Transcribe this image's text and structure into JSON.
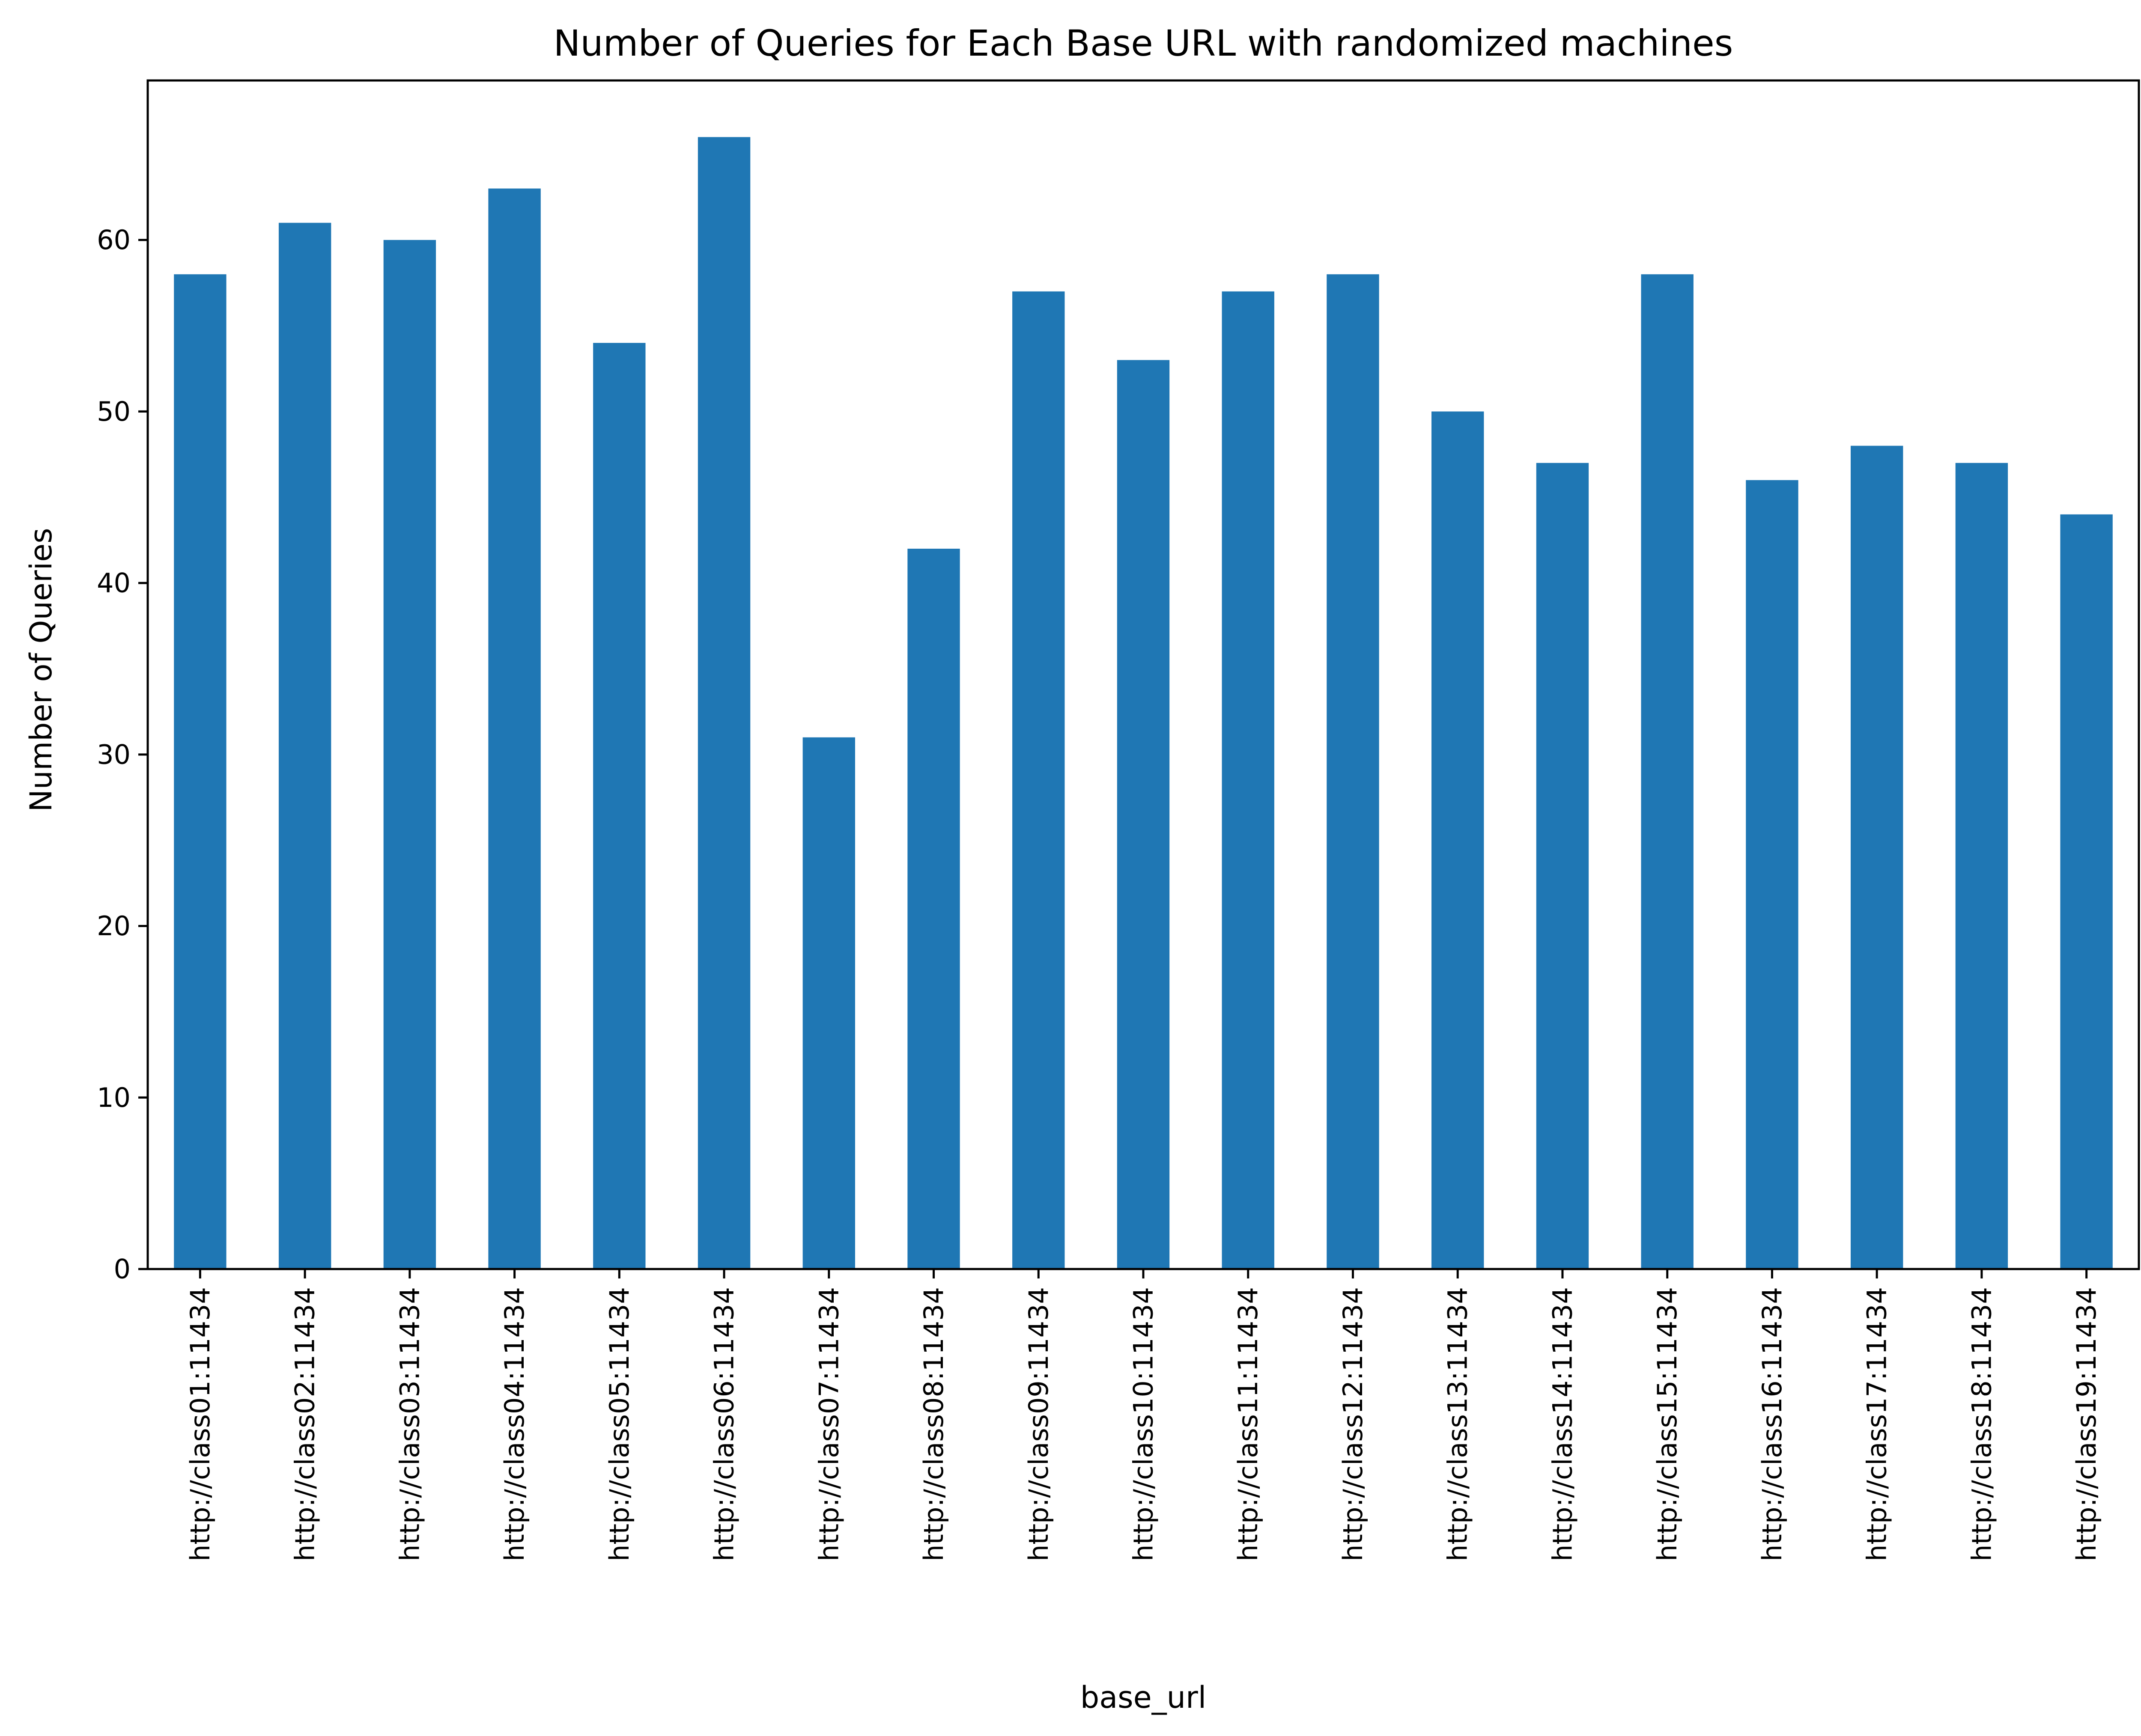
{
  "chart_data": {
    "type": "bar",
    "title": "Number of Queries for Each Base URL with randomized machines",
    "xlabel": "base_url",
    "ylabel": "Number of Queries",
    "ylim": [
      0,
      69.3
    ],
    "yticks": [
      0,
      10,
      20,
      30,
      40,
      50,
      60
    ],
    "grid": false,
    "legend": "none",
    "bar_color": "#1f77b4",
    "categories": [
      "http://class01:11434",
      "http://class02:11434",
      "http://class03:11434",
      "http://class04:11434",
      "http://class05:11434",
      "http://class06:11434",
      "http://class07:11434",
      "http://class08:11434",
      "http://class09:11434",
      "http://class10:11434",
      "http://class11:11434",
      "http://class12:11434",
      "http://class13:11434",
      "http://class14:11434",
      "http://class15:11434",
      "http://class16:11434",
      "http://class17:11434",
      "http://class18:11434",
      "http://class19:11434"
    ],
    "values": [
      58,
      61,
      60,
      63,
      54,
      66,
      31,
      42,
      57,
      53,
      57,
      58,
      50,
      47,
      58,
      46,
      48,
      47,
      44
    ]
  }
}
